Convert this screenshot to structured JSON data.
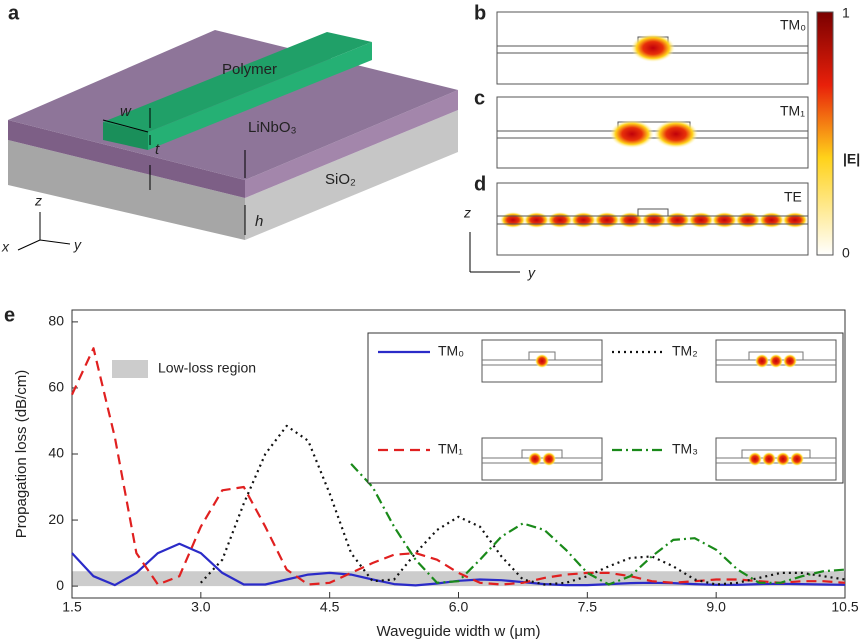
{
  "panel_a": {
    "letter": "a",
    "polymer": "Polymer",
    "linbo3": "LiNbO₃",
    "sio2": "SiO₂",
    "w": "w",
    "t": "t",
    "h": "h",
    "z": "z",
    "x": "x",
    "y": "y"
  },
  "panel_b": {
    "letter": "b",
    "mode": "TM₀"
  },
  "panel_c": {
    "letter": "c",
    "mode": "TM₁"
  },
  "panel_d": {
    "letter": "d",
    "mode": "TE",
    "z": "z",
    "y": "y"
  },
  "colorbar": {
    "max": "1",
    "min": "0",
    "label": "|E|"
  },
  "chart_data": {
    "type": "line",
    "letter": "e",
    "xlabel": "Waveguide width w (μm)",
    "ylabel": "Propagation loss (dB/cm)",
    "x": [
      1.5,
      1.75,
      2.0,
      2.25,
      2.5,
      2.75,
      3.0,
      3.25,
      3.5,
      3.75,
      4.0,
      4.25,
      4.5,
      4.75,
      5.0,
      5.25,
      5.5,
      5.75,
      6.0,
      6.25,
      6.5,
      6.75,
      7.0,
      7.25,
      7.5,
      7.75,
      8.0,
      8.25,
      8.5,
      8.75,
      9.0,
      9.25,
      9.5,
      9.75,
      10.0,
      10.25,
      10.5
    ],
    "series": [
      {
        "name": "TM₀",
        "color": "#2b2bc8",
        "linestyle": "solid",
        "values": [
          10,
          3,
          0.3,
          4,
          10,
          12.8,
          10,
          4,
          0.5,
          0.5,
          2,
          3.5,
          4,
          3.5,
          2,
          0.6,
          0.2,
          0.8,
          1.6,
          2,
          1.8,
          1.2,
          0.6,
          0.3,
          0.3,
          0.6,
          0.9,
          1,
          0.9,
          0.6,
          0.4,
          0.4,
          0.6,
          0.7,
          0.6,
          0.5,
          0.4
        ]
      },
      {
        "name": "TM₁",
        "color": "#e02020",
        "linestyle": "dashed",
        "values": [
          58,
          72,
          45,
          10,
          0.5,
          3,
          18,
          29,
          30,
          18,
          5,
          0.5,
          1,
          4,
          7,
          9.5,
          10,
          8,
          4,
          1,
          0.5,
          1,
          2.5,
          3.5,
          4,
          4,
          3,
          1.5,
          1,
          1.5,
          2,
          2,
          1.5,
          1,
          1.5,
          1.5,
          1
        ]
      },
      {
        "name": "TM₂",
        "color": "#111111",
        "linestyle": "dotted",
        "values": [
          null,
          null,
          null,
          null,
          null,
          null,
          1,
          8,
          25,
          40,
          48.5,
          44,
          28,
          10,
          1.5,
          2,
          10,
          17,
          21,
          18,
          9,
          2,
          0.5,
          1,
          3,
          6,
          8.5,
          9,
          6,
          2,
          0.5,
          1,
          2.5,
          4,
          4,
          3,
          2
        ]
      },
      {
        "name": "TM₃",
        "color": "#1a8a1a",
        "linestyle": "dashdot",
        "values": [
          null,
          null,
          null,
          null,
          null,
          null,
          null,
          null,
          null,
          null,
          null,
          null,
          null,
          37,
          30,
          18,
          8,
          1,
          1.5,
          8,
          15,
          19,
          17,
          11,
          4,
          0.5,
          3,
          9,
          14,
          14.5,
          11,
          5,
          1,
          1,
          3,
          4.5,
          5
        ]
      }
    ],
    "xlim": [
      1.5,
      10.5
    ],
    "xticks": [
      1.5,
      {
        "value": 3,
        "label": "3.0"
      },
      4.5,
      {
        "value": 6,
        "label": "6.0"
      },
      7.5,
      {
        "value": 9,
        "label": "9.0"
      },
      10.5
    ],
    "ylim": [
      -3.6,
      83.6
    ],
    "yticks": [
      0,
      20,
      40,
      60,
      80
    ],
    "region": {
      "label": "Low-loss region",
      "color": "#cccccc",
      "range": [
        0,
        4.5
      ]
    }
  }
}
